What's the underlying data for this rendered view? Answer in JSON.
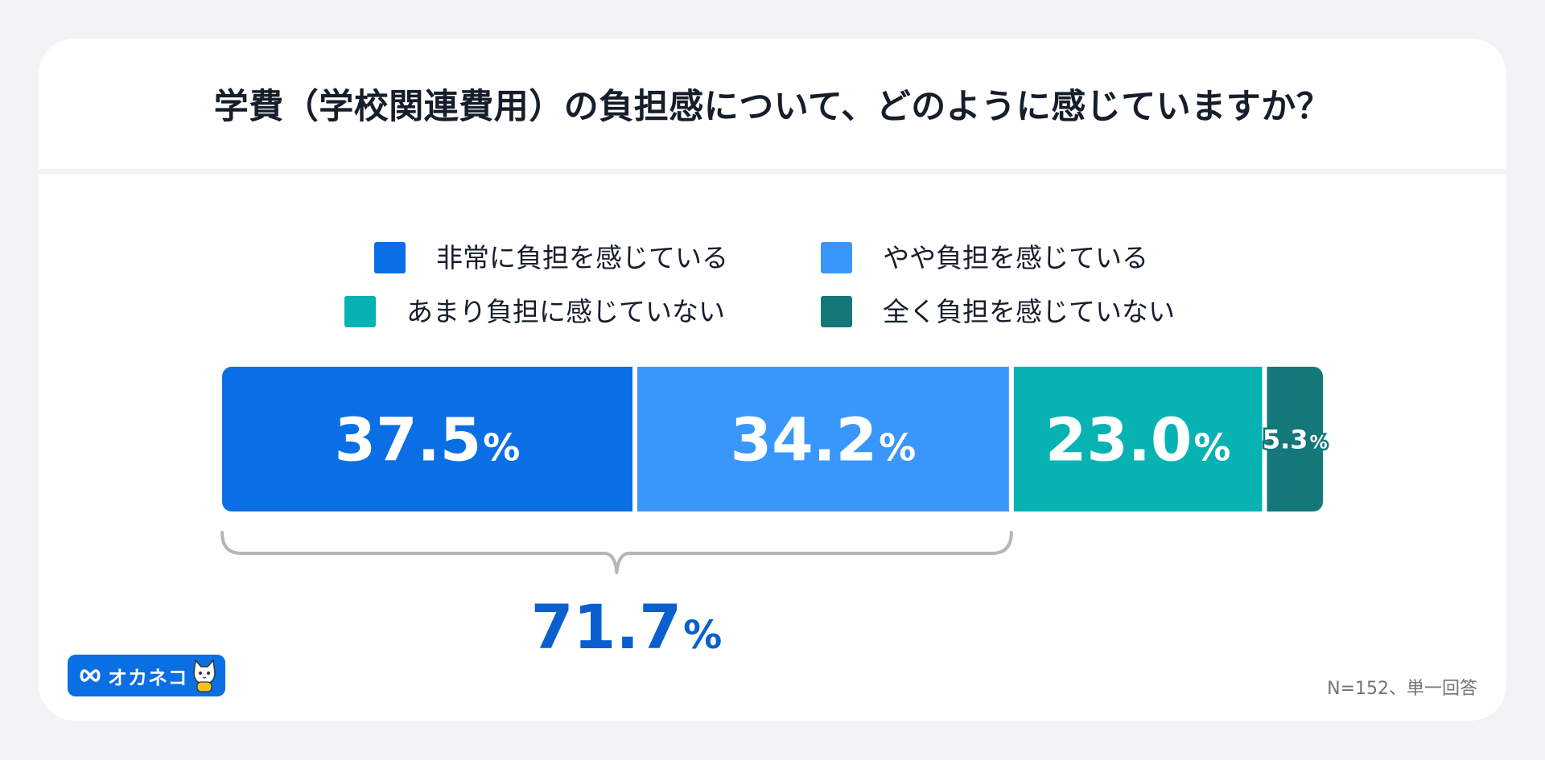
{
  "title": "学費（学校関連費用）の負担感について、どのように感じていますか？",
  "note": "N=152、単一回答",
  "logo": {
    "text": "オカネコ",
    "icon": "cat-mascot-icon"
  },
  "colors": {
    "very": "#0a6fe4",
    "somewhat": "#3996fb",
    "not_much": "#07b2b3",
    "not_at_all": "#14777a",
    "total": "#0a5fcf",
    "brace": "#b3b6bb"
  },
  "chart_data": {
    "type": "bar",
    "orientation": "horizontal-stacked",
    "title": "学費（学校関連費用）の負担感について、どのように感じていますか？",
    "series": [
      {
        "name": "非常に負担を感じている",
        "value": 37.5,
        "label": "37.5",
        "color": "#0a6fe4"
      },
      {
        "name": "やや負担を感じている",
        "value": 34.2,
        "label": "34.2",
        "color": "#3996fb"
      },
      {
        "name": "あまり負担に感じていない",
        "value": 23.0,
        "label": "23.0",
        "color": "#07b2b3"
      },
      {
        "name": "全く負担を感じていない",
        "value": 5.3,
        "label": "5.3",
        "color": "#14777a"
      }
    ],
    "unit": "%",
    "annotation": {
      "label": "71.7",
      "unit": "%",
      "spans": [
        0,
        1
      ]
    },
    "legend_position": "top",
    "grid": false
  }
}
